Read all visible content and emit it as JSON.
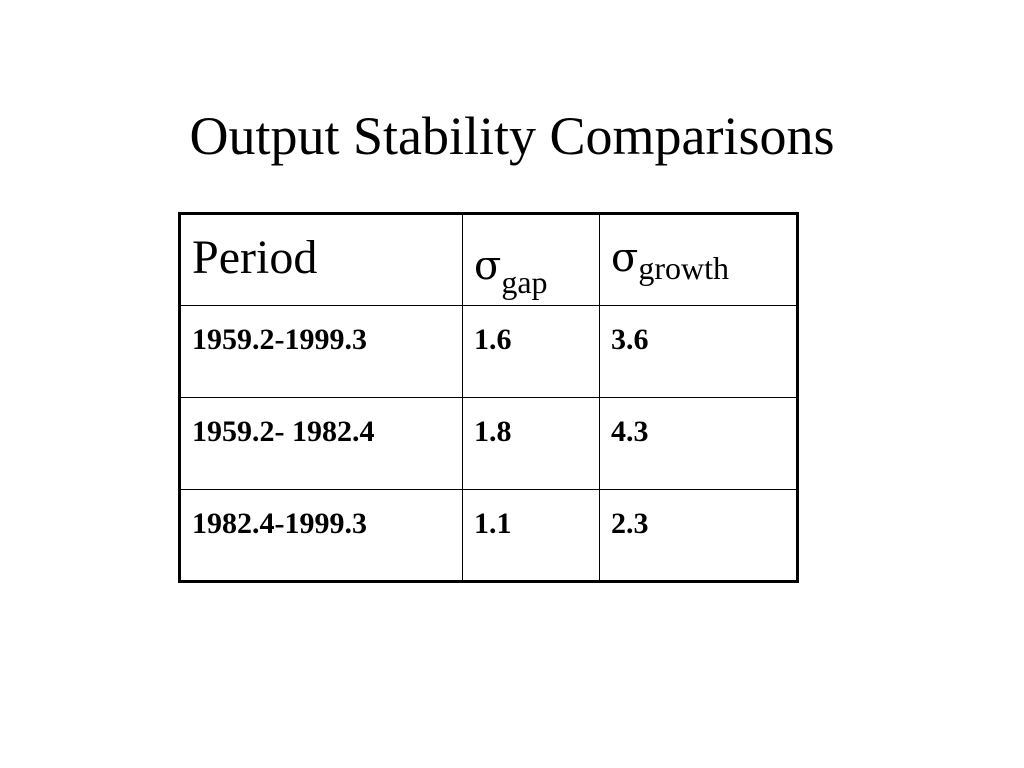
{
  "slide": {
    "title": "Output Stability Comparisons"
  },
  "table": {
    "headers": {
      "period": "Period",
      "gap_symbol": "σ",
      "gap_subscript": "gap",
      "growth_symbol": "σ",
      "growth_subscript": "growth"
    },
    "rows": [
      {
        "period": "1959.2-1999.3",
        "gap": "1.6",
        "growth": "3.6"
      },
      {
        "period": "1959.2- 1982.4",
        "gap": "1.8",
        "growth": "4.3"
      },
      {
        "period": "1982.4-1999.3",
        "gap": "1.1",
        "growth": "2.3"
      }
    ]
  }
}
